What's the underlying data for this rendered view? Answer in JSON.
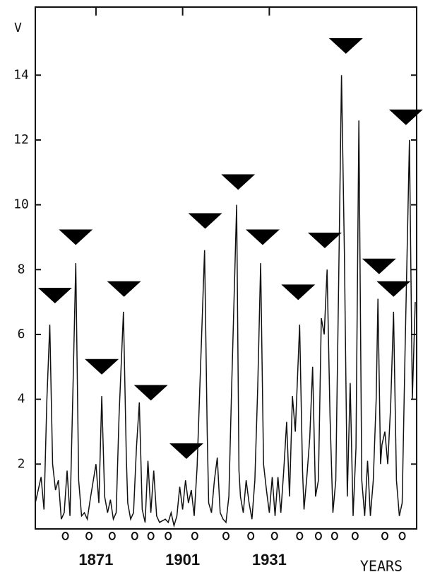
{
  "chart_data": {
    "type": "line",
    "y_label": "V",
    "x_label": "YEARS",
    "xlim": [
      1850,
      1982
    ],
    "ylim": [
      0,
      16.1
    ],
    "xticks": [
      1871,
      1901,
      1931
    ],
    "yticks": [
      2,
      4,
      6,
      8,
      10,
      12,
      14
    ],
    "x": [
      1850,
      1852,
      1853,
      1854,
      1855,
      1856,
      1857,
      1858,
      1859,
      1860,
      1861,
      1862,
      1863,
      1864,
      1865,
      1866,
      1867,
      1868,
      1869,
      1871,
      1872,
      1873,
      1874,
      1875,
      1876,
      1877,
      1878,
      1879,
      1880.5,
      1881.5,
      1882,
      1883,
      1884,
      1885,
      1886,
      1887,
      1888,
      1889,
      1890,
      1891,
      1892,
      1893,
      1895,
      1896,
      1897,
      1898,
      1899,
      1900,
      1901,
      1902,
      1903,
      1904,
      1905,
      1906,
      1907,
      1908.6,
      1909.5,
      1910,
      1911,
      1912,
      1913,
      1914,
      1915,
      1916,
      1917,
      1918,
      1919.7,
      1920.5,
      1921,
      1922,
      1923,
      1924,
      1925,
      1926,
      1927,
      1928,
      1929,
      1930,
      1931,
      1932,
      1933,
      1934,
      1935,
      1936,
      1937,
      1938,
      1939,
      1940,
      1941.5,
      1942.5,
      1943,
      1944,
      1945,
      1946,
      1947,
      1948,
      1949,
      1950,
      1951,
      1952,
      1953,
      1954,
      1955,
      1956,
      1957,
      1958,
      1959,
      1960,
      1961,
      1962,
      1963,
      1964,
      1965,
      1966,
      1967,
      1968,
      1968.6,
      1969.5,
      1970,
      1971,
      1972,
      1973,
      1974,
      1975,
      1976,
      1977,
      1978,
      1979.5,
      1980.5,
      1981.5
    ],
    "series": [
      {
        "color": "#111111",
        "values": [
          0.8,
          1.6,
          0.6,
          4.0,
          6.3,
          2.0,
          1.2,
          1.5,
          0.3,
          0.5,
          1.8,
          0.4,
          4.2,
          8.2,
          1.5,
          0.4,
          0.5,
          0.3,
          0.9,
          2.0,
          0.8,
          4.1,
          1.0,
          0.5,
          0.9,
          0.3,
          0.5,
          3.5,
          6.7,
          2.2,
          0.8,
          0.3,
          0.5,
          2.5,
          3.9,
          0.6,
          0.2,
          2.1,
          0.5,
          1.8,
          0.4,
          0.2,
          0.3,
          0.2,
          0.5,
          0.1,
          0.4,
          1.3,
          0.6,
          1.5,
          0.8,
          1.2,
          0.4,
          1.9,
          4.5,
          8.6,
          3.0,
          0.8,
          0.5,
          1.5,
          2.2,
          0.5,
          0.3,
          0.2,
          1.0,
          4.5,
          10.0,
          1.8,
          1.0,
          0.5,
          1.5,
          0.8,
          0.3,
          1.5,
          4.4,
          8.2,
          2.0,
          1.2,
          0.5,
          1.6,
          0.4,
          1.6,
          0.5,
          1.8,
          3.3,
          1.0,
          4.1,
          3.0,
          6.3,
          1.8,
          0.6,
          1.6,
          2.8,
          5.0,
          1.0,
          1.5,
          6.5,
          6.0,
          8.0,
          3.5,
          0.5,
          1.5,
          7.5,
          14.0,
          8.5,
          1.0,
          4.5,
          0.4,
          2.5,
          12.6,
          1.5,
          0.4,
          2.1,
          0.4,
          1.5,
          4.0,
          7.1,
          2.0,
          2.6,
          3.0,
          2.0,
          3.8,
          6.7,
          1.5,
          0.4,
          0.8,
          5.5,
          12.0,
          4.0,
          7.0
        ]
      }
    ],
    "triangles": {
      "color": "#000000",
      "x": [
        1856.8,
        1864,
        1873,
        1880.7,
        1890,
        1902.3,
        1908.8,
        1920.2,
        1928.7,
        1941,
        1950.2,
        1957.5,
        1969,
        1974,
        1978.3
      ],
      "values": [
        7.2,
        9.0,
        5.0,
        7.4,
        4.2,
        2.4,
        9.5,
        10.7,
        9.0,
        7.3,
        8.9,
        14.9,
        8.1,
        7.4,
        12.7
      ]
    },
    "circles_x": [
      1860.4,
      1868.6,
      1876.6,
      1884.4,
      1890,
      1896,
      1905.2,
      1916,
      1924.6,
      1932.8,
      1941.5,
      1948,
      1953.6,
      1960.7,
      1971,
      1977
    ]
  }
}
